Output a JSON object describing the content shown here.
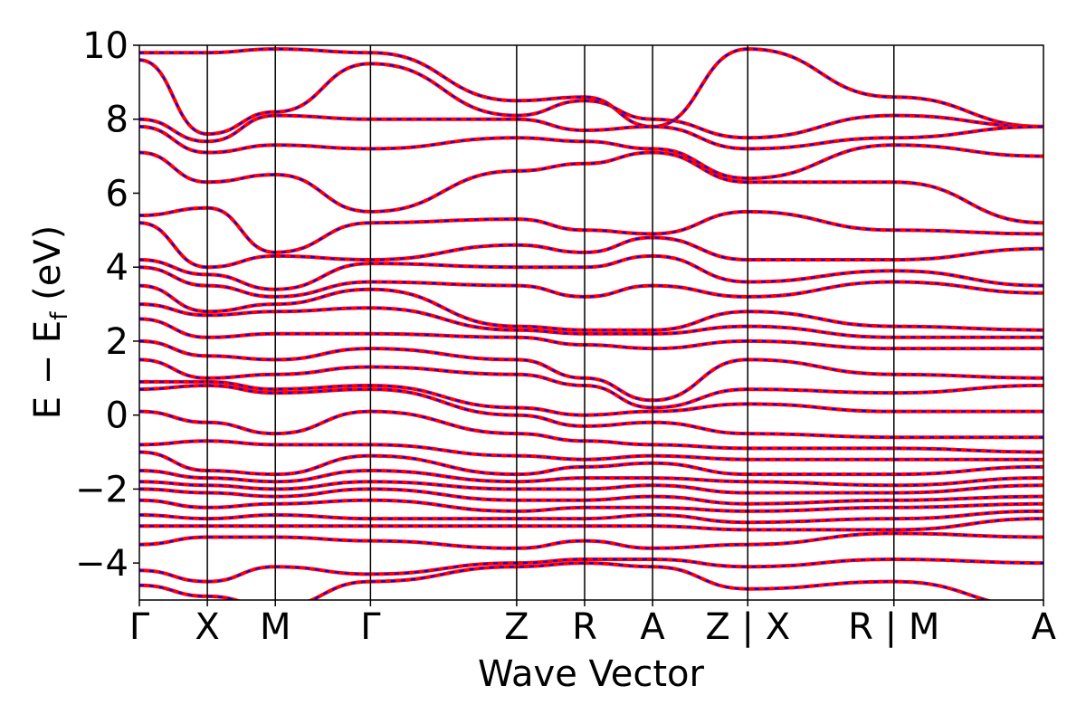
{
  "chart_data": {
    "type": "line",
    "title": "",
    "xlabel": "Wave Vector",
    "ylabel_main": "E − E",
    "ylabel_sub": "f",
    "ylabel_unit": " (eV)",
    "ylim": [
      -5,
      10
    ],
    "yticks": [
      -4,
      -2,
      0,
      2,
      4,
      6,
      8,
      10
    ],
    "ytick_labels": [
      "−4",
      "−2",
      "0",
      "2",
      "4",
      "6",
      "8",
      "10"
    ],
    "xlim": [
      0,
      13.3
    ],
    "kpoints": [
      {
        "label": "Γ",
        "x": 0
      },
      {
        "label": "X",
        "x": 1.0
      },
      {
        "label": "M",
        "x": 2.0
      },
      {
        "label": "Γ",
        "x": 3.4
      },
      {
        "label": "Z",
        "x": 5.55
      },
      {
        "label": "R",
        "x": 6.55
      },
      {
        "label": "A",
        "x": 7.55
      },
      {
        "label": "Z | X",
        "x": 8.95
      },
      {
        "label": "R | M",
        "x": 11.1
      },
      {
        "label": "A",
        "x": 13.3
      }
    ],
    "grid": false,
    "legend": "none",
    "colors": {
      "series_a": "#ff0000",
      "series_b": "#0000ff",
      "kline": "#000000"
    },
    "series": [
      {
        "x": [
          0,
          1.0,
          2.0,
          3.4,
          5.55,
          6.55,
          7.55,
          8.95,
          11.1,
          13.3
        ],
        "y": [
          9.8,
          9.8,
          9.9,
          9.8,
          8.5,
          8.6,
          7.8,
          9.9,
          8.6,
          7.8
        ]
      },
      {
        "x": [
          0,
          1.0,
          2.0,
          3.4,
          5.55,
          6.55,
          7.55,
          8.95,
          11.1,
          13.3
        ],
        "y": [
          9.6,
          7.6,
          8.2,
          9.5,
          8.1,
          8.5,
          8.0,
          7.5,
          8.1,
          7.8
        ]
      },
      {
        "x": [
          0,
          1.0,
          2.0,
          3.4,
          5.55,
          6.55,
          7.55,
          8.95,
          11.1,
          13.3
        ],
        "y": [
          8.0,
          7.4,
          8.1,
          8.0,
          8.0,
          7.7,
          7.8,
          7.2,
          7.5,
          7.8
        ]
      },
      {
        "x": [
          0,
          1.0,
          2.0,
          3.4,
          5.55,
          6.55,
          7.55,
          8.95,
          11.1,
          13.3
        ],
        "y": [
          7.8,
          7.1,
          7.3,
          7.2,
          7.5,
          7.4,
          7.2,
          6.4,
          7.3,
          7.0
        ]
      },
      {
        "x": [
          0,
          1.0,
          2.0,
          3.4,
          5.55,
          6.55,
          7.55,
          8.95,
          11.1,
          13.3
        ],
        "y": [
          7.1,
          6.3,
          6.5,
          5.5,
          6.6,
          6.8,
          7.1,
          6.3,
          6.3,
          5.2
        ]
      },
      {
        "x": [
          0,
          1.0,
          2.0,
          3.4,
          5.55,
          6.55,
          7.55,
          8.95,
          11.1,
          13.3
        ],
        "y": [
          5.4,
          5.6,
          4.4,
          5.2,
          5.3,
          5.0,
          4.9,
          5.5,
          5.0,
          4.9
        ]
      },
      {
        "x": [
          0,
          1.0,
          2.0,
          3.4,
          5.55,
          6.55,
          7.55,
          8.95,
          11.1,
          13.3
        ],
        "y": [
          5.2,
          4.0,
          4.3,
          4.2,
          4.6,
          4.4,
          4.8,
          4.2,
          4.2,
          4.5
        ]
      },
      {
        "x": [
          0,
          1.0,
          2.0,
          3.4,
          5.55,
          6.55,
          7.55,
          8.95,
          11.1,
          13.3
        ],
        "y": [
          4.2,
          3.8,
          3.4,
          4.1,
          4.0,
          4.0,
          4.3,
          3.6,
          3.9,
          3.5
        ]
      },
      {
        "x": [
          0,
          1.0,
          2.0,
          3.4,
          5.55,
          6.55,
          7.55,
          8.95,
          11.1,
          13.3
        ],
        "y": [
          4.0,
          3.5,
          3.2,
          3.6,
          3.5,
          3.2,
          3.5,
          3.2,
          3.6,
          3.3
        ]
      },
      {
        "x": [
          0,
          1.0,
          2.0,
          3.4,
          5.55,
          6.55,
          7.55,
          8.95,
          11.1,
          13.3
        ],
        "y": [
          3.5,
          2.8,
          3.0,
          3.4,
          2.4,
          2.3,
          2.3,
          2.8,
          2.4,
          2.3
        ]
      },
      {
        "x": [
          0,
          1.0,
          2.0,
          3.4,
          5.55,
          6.55,
          7.55,
          8.95,
          11.1,
          13.3
        ],
        "y": [
          3.0,
          2.7,
          2.8,
          2.9,
          2.3,
          2.2,
          2.2,
          2.4,
          2.1,
          2.1
        ]
      },
      {
        "x": [
          0,
          1.0,
          2.0,
          3.4,
          5.55,
          6.55,
          7.55,
          8.95,
          11.1,
          13.3
        ],
        "y": [
          2.6,
          2.1,
          2.2,
          2.2,
          2.1,
          1.9,
          1.8,
          2.0,
          1.8,
          1.8
        ]
      },
      {
        "x": [
          0,
          1.0,
          2.0,
          3.4,
          5.55,
          6.55,
          7.55,
          8.95,
          11.1,
          13.3
        ],
        "y": [
          2.0,
          1.6,
          1.5,
          1.8,
          1.5,
          1.0,
          0.4,
          1.5,
          1.1,
          1.0
        ]
      },
      {
        "x": [
          0,
          1.0,
          2.0,
          3.4,
          5.55,
          6.55,
          7.55,
          8.95,
          11.1,
          13.3
        ],
        "y": [
          1.5,
          1.0,
          1.1,
          1.3,
          1.1,
          0.8,
          0.2,
          0.7,
          0.6,
          0.8
        ]
      },
      {
        "x": [
          0,
          1.0,
          2.0,
          3.4,
          5.55,
          6.55,
          7.55,
          8.95,
          11.1,
          13.3
        ],
        "y": [
          0.9,
          0.9,
          0.7,
          0.8,
          0.2,
          0.0,
          0.1,
          0.3,
          0.1,
          0.1
        ]
      },
      {
        "x": [
          0,
          1.0,
          2.0,
          3.4,
          5.55,
          6.55,
          7.55,
          8.95,
          11.1,
          13.3
        ],
        "y": [
          0.7,
          0.8,
          0.6,
          0.7,
          0.0,
          -0.3,
          -0.2,
          -0.5,
          -0.6,
          -0.6
        ]
      },
      {
        "x": [
          0,
          1.0,
          2.0,
          3.4,
          5.55,
          6.55,
          7.55,
          8.95,
          11.1,
          13.3
        ],
        "y": [
          0.1,
          -0.2,
          -0.5,
          0.1,
          -0.5,
          -0.7,
          -0.8,
          -0.9,
          -0.9,
          -1.0
        ]
      },
      {
        "x": [
          0,
          1.0,
          2.0,
          3.4,
          5.55,
          6.55,
          7.55,
          8.95,
          11.1,
          13.3
        ],
        "y": [
          -0.8,
          -0.7,
          -0.8,
          -0.8,
          -1.1,
          -1.2,
          -1.1,
          -1.2,
          -1.2,
          -1.2
        ]
      },
      {
        "x": [
          0,
          1.0,
          2.0,
          3.4,
          5.55,
          6.55,
          7.55,
          8.95,
          11.1,
          13.3
        ],
        "y": [
          -1.0,
          -1.5,
          -1.6,
          -1.1,
          -1.6,
          -1.4,
          -1.3,
          -1.6,
          -1.6,
          -1.4
        ]
      },
      {
        "x": [
          0,
          1.0,
          2.0,
          3.4,
          5.55,
          6.55,
          7.55,
          8.95,
          11.1,
          13.3
        ],
        "y": [
          -1.5,
          -1.7,
          -1.8,
          -1.5,
          -1.8,
          -1.7,
          -1.7,
          -1.8,
          -1.9,
          -1.7
        ]
      },
      {
        "x": [
          0,
          1.0,
          2.0,
          3.4,
          5.55,
          6.55,
          7.55,
          8.95,
          11.1,
          13.3
        ],
        "y": [
          -1.8,
          -1.9,
          -2.0,
          -1.8,
          -2.0,
          -2.0,
          -1.9,
          -2.1,
          -2.1,
          -1.9
        ]
      },
      {
        "x": [
          0,
          1.0,
          2.0,
          3.4,
          5.55,
          6.55,
          7.55,
          8.95,
          11.1,
          13.3
        ],
        "y": [
          -2.0,
          -2.1,
          -2.2,
          -2.0,
          -2.3,
          -2.3,
          -2.2,
          -2.4,
          -2.3,
          -2.2
        ]
      },
      {
        "x": [
          0,
          1.0,
          2.0,
          3.4,
          5.55,
          6.55,
          7.55,
          8.95,
          11.1,
          13.3
        ],
        "y": [
          -2.3,
          -2.5,
          -2.4,
          -2.3,
          -2.6,
          -2.5,
          -2.5,
          -2.6,
          -2.5,
          -2.4
        ]
      },
      {
        "x": [
          0,
          1.0,
          2.0,
          3.4,
          5.55,
          6.55,
          7.55,
          8.95,
          11.1,
          13.3
        ],
        "y": [
          -2.7,
          -2.8,
          -2.7,
          -2.8,
          -2.8,
          -2.8,
          -2.7,
          -2.9,
          -2.8,
          -2.6
        ]
      },
      {
        "x": [
          0,
          1.0,
          2.0,
          3.4,
          5.55,
          6.55,
          7.55,
          8.95,
          11.1,
          13.3
        ],
        "y": [
          -3.0,
          -3.0,
          -3.0,
          -3.0,
          -3.0,
          -3.0,
          -3.0,
          -3.1,
          -3.1,
          -2.8
        ]
      },
      {
        "x": [
          0,
          1.0,
          2.0,
          3.4,
          5.55,
          6.55,
          7.55,
          8.95,
          11.1,
          13.3
        ],
        "y": [
          -3.5,
          -3.3,
          -3.3,
          -3.4,
          -3.6,
          -3.4,
          -3.6,
          -3.5,
          -3.2,
          -3.3
        ]
      },
      {
        "x": [
          0,
          1.0,
          2.0,
          3.4,
          5.55,
          6.55,
          7.55,
          8.95,
          11.1,
          13.3
        ],
        "y": [
          -4.2,
          -4.5,
          -4.1,
          -4.3,
          -4.0,
          -3.9,
          -3.9,
          -4.1,
          -3.9,
          -4.0
        ]
      },
      {
        "x": [
          0,
          1.0,
          2.0,
          3.4,
          5.55,
          6.55,
          7.55,
          8.95,
          11.1,
          13.3
        ],
        "y": [
          -4.6,
          -4.9,
          -5.2,
          -4.5,
          -4.1,
          -4.0,
          -4.1,
          -4.7,
          -4.5,
          -5.2
        ]
      }
    ]
  }
}
